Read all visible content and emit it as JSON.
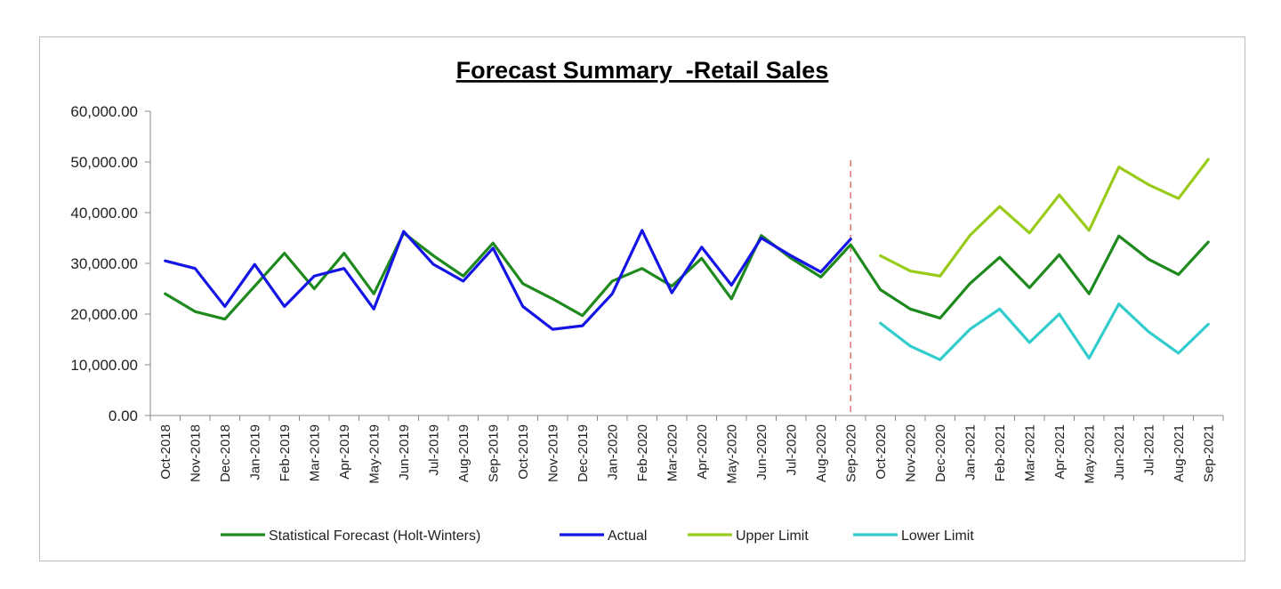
{
  "chart_data": {
    "type": "line",
    "title": "Forecast Summary  -Retail Sales",
    "xlabel": "",
    "ylabel": "",
    "ylim": [
      0,
      60000
    ],
    "yticks": [
      "0.00",
      "10,000.00",
      "20,000.00",
      "30,000.00",
      "40,000.00",
      "50,000.00",
      "60,000.00"
    ],
    "categories": [
      "Oct-2018",
      "Nov-2018",
      "Dec-2018",
      "Jan-2019",
      "Feb-2019",
      "Mar-2019",
      "Apr-2019",
      "May-2019",
      "Jun-2019",
      "Jul-2019",
      "Aug-2019",
      "Sep-2019",
      "Oct-2019",
      "Nov-2019",
      "Dec-2019",
      "Jan-2020",
      "Feb-2020",
      "Mar-2020",
      "Apr-2020",
      "May-2020",
      "Jun-2020",
      "Jul-2020",
      "Aug-2020",
      "Sep-2020",
      "Oct-2020",
      "Nov-2020",
      "Dec-2020",
      "Jan-2021",
      "Feb-2021",
      "Mar-2021",
      "Apr-2021",
      "May-2021",
      "Jun-2021",
      "Jul-2021",
      "Aug-2021",
      "Sep-2021"
    ],
    "forecast_start_marker": "Sep-2020",
    "legend_position": "bottom",
    "grid": false,
    "series": [
      {
        "name": "Statistical Forecast (Holt-Winters)",
        "color": "#1e8a1e",
        "values": [
          24000,
          20500,
          19000,
          25500,
          32000,
          25000,
          32000,
          24000,
          36000,
          31500,
          27500,
          34000,
          26000,
          23000,
          19700,
          26500,
          29000,
          25500,
          31000,
          23000,
          35500,
          31000,
          27300,
          33700,
          24800,
          21000,
          19200,
          26000,
          31200,
          25200,
          31700,
          24000,
          35400,
          30800,
          27800,
          34200
        ]
      },
      {
        "name": "Actual",
        "color": "#1414e6",
        "values": [
          30500,
          29000,
          21500,
          29800,
          21500,
          27500,
          29000,
          21000,
          36300,
          29800,
          26500,
          33000,
          21500,
          17000,
          17700,
          24000,
          36500,
          24200,
          33200,
          25700,
          35000,
          31500,
          28300,
          34800,
          null,
          null,
          null,
          null,
          null,
          null,
          null,
          null,
          null,
          null,
          null,
          null
        ]
      },
      {
        "name": "Upper Limit",
        "color": "#99cc1a",
        "values": [
          null,
          null,
          null,
          null,
          null,
          null,
          null,
          null,
          null,
          null,
          null,
          null,
          null,
          null,
          null,
          null,
          null,
          null,
          null,
          null,
          null,
          null,
          null,
          null,
          31500,
          28500,
          27500,
          35500,
          41200,
          36000,
          43500,
          36500,
          49000,
          45500,
          42800,
          50500
        ]
      },
      {
        "name": "Lower Limit",
        "color": "#33cccc",
        "values": [
          null,
          null,
          null,
          null,
          null,
          null,
          null,
          null,
          null,
          null,
          null,
          null,
          null,
          null,
          null,
          null,
          null,
          null,
          null,
          null,
          null,
          null,
          null,
          null,
          18200,
          13700,
          11000,
          17000,
          21000,
          14400,
          20000,
          11300,
          22000,
          16500,
          12300,
          18000
        ]
      }
    ]
  }
}
